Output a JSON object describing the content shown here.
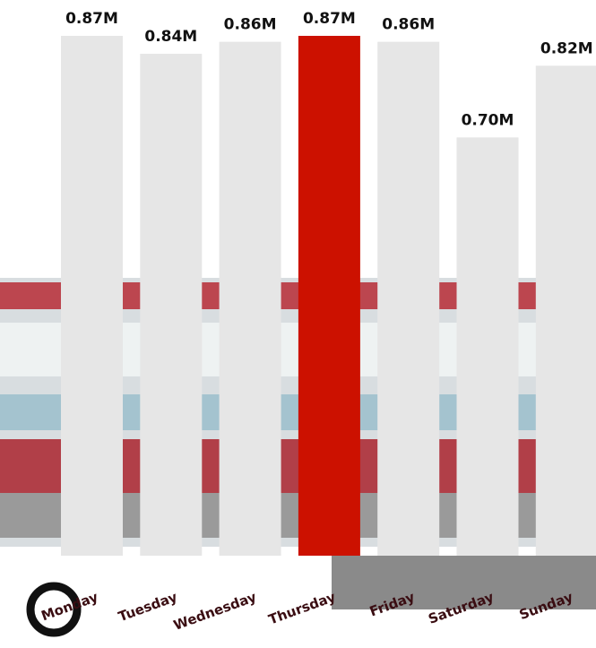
{
  "chart_data": {
    "type": "bar",
    "categories": [
      "Monday",
      "Tuesday",
      "Wednesday",
      "Thursday",
      "Friday",
      "Saturday",
      "Sunday"
    ],
    "values": [
      0.87,
      0.84,
      0.86,
      0.87,
      0.86,
      0.7,
      0.82
    ],
    "value_labels": [
      "0.87M",
      "0.84M",
      "0.86M",
      "0.87M",
      "0.86M",
      "0.70M",
      "0.82M"
    ],
    "colors": [
      "#e6e6e6",
      "#e6e6e6",
      "#e6e6e6",
      "#cc1100",
      "#e6e6e6",
      "#e6e6e6",
      "#e6e6e6"
    ]
  }
}
